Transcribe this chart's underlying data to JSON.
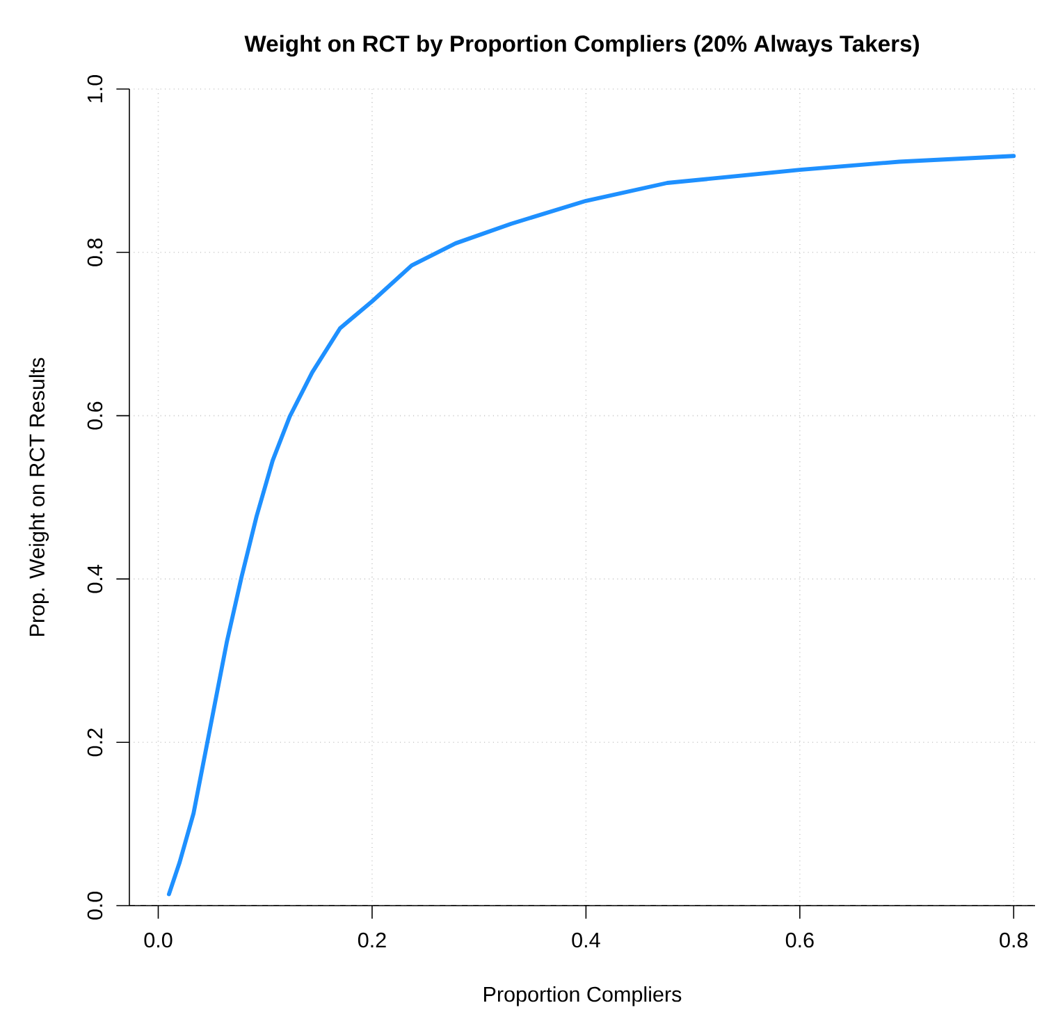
{
  "chart_data": {
    "type": "line",
    "title": "Weight on RCT by Proportion Compliers (20% Always Takers)",
    "xlabel": "Proportion Compliers",
    "ylabel": "Prop. Weight on RCT Results",
    "x": [
      0.01,
      0.02,
      0.033,
      0.048,
      0.064,
      0.078,
      0.092,
      0.107,
      0.123,
      0.144,
      0.17,
      0.2,
      0.237,
      0.278,
      0.33,
      0.4,
      0.476,
      0.6,
      0.693,
      0.8
    ],
    "series": [
      {
        "color": "#1e90ff",
        "values": [
          0.014,
          0.053,
          0.113,
          0.214,
          0.322,
          0.403,
          0.477,
          0.545,
          0.599,
          0.653,
          0.707,
          0.74,
          0.784,
          0.811,
          0.835,
          0.863,
          0.885,
          0.901,
          0.911,
          0.918
        ]
      }
    ],
    "xlim": [
      -0.027,
      0.82
    ],
    "ylim": [
      0,
      1
    ],
    "xticks": [
      {
        "value": 0,
        "label": "0.0"
      },
      {
        "value": 0.2,
        "label": "0.2"
      },
      {
        "value": 0.4,
        "label": "0.4"
      },
      {
        "value": 0.6,
        "label": "0.6"
      },
      {
        "value": 0.8,
        "label": "0.8"
      }
    ],
    "yticks": [
      {
        "value": 0,
        "label": "0.0"
      },
      {
        "value": 0.2,
        "label": "0.2"
      },
      {
        "value": 0.4,
        "label": "0.4"
      },
      {
        "value": 0.6,
        "label": "0.6"
      },
      {
        "value": 0.8,
        "label": "0.8"
      },
      {
        "value": 1,
        "label": "1.0"
      }
    ],
    "ref_lines": [
      {
        "axis": "y",
        "value": 0,
        "color": "#000000",
        "line_style": "dashed"
      }
    ],
    "grid": true,
    "marker": "none",
    "line_style": "solid"
  }
}
